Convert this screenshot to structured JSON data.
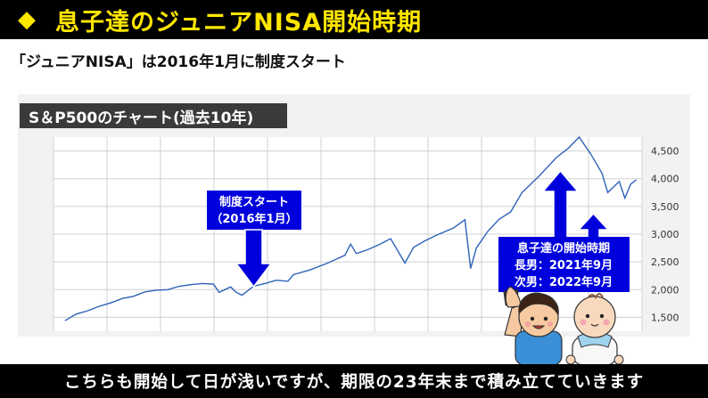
{
  "header": {
    "title": "息子達のジュニアNISA開始時期"
  },
  "subtitle": "「ジュニアNISA」は2016年1月に制度スタート",
  "chart_label": "S＆P500のチャート(過去10年)",
  "footer": "こちらも開始して日が浅いですが、期限の23年末まで積み立てていきます",
  "annotations": {
    "start_line1": "制度スタート",
    "start_line2": "（2016年1月）",
    "sons_line1": "息子達の開始時期",
    "sons_line2": "長男：2021年9月",
    "sons_line3": "次男：2022年9月"
  },
  "colors": {
    "line": "#2e62b8",
    "arrow": "#0000dd",
    "title": "#ffe600"
  },
  "chart_data": {
    "type": "line",
    "title": "S＆P500のチャート(過去10年)",
    "xlabel": "",
    "ylabel": "",
    "xlim": [
      2012.8,
      2023.1
    ],
    "ylim": [
      1250,
      4750
    ],
    "yticks": [
      1500,
      2000,
      2500,
      3000,
      3500,
      4000,
      4500
    ],
    "ytick_labels": [
      "1,500",
      "2,000",
      "2,500",
      "3,000",
      "3,500",
      "4,000",
      "4,500"
    ],
    "grid": true,
    "series": [
      {
        "x": [
          2013.0,
          2013.2,
          2013.4,
          2013.6,
          2013.8,
          2014.0,
          2014.2,
          2014.4,
          2014.6,
          2014.8,
          2015.0,
          2015.2,
          2015.4,
          2015.6,
          2015.7,
          2015.9,
          2016.0,
          2016.1,
          2016.3,
          2016.5,
          2016.7,
          2016.9,
          2017.0,
          2017.3,
          2017.6,
          2017.9,
          2018.0,
          2018.1,
          2018.3,
          2018.5,
          2018.7,
          2018.95,
          2019.1,
          2019.3,
          2019.5,
          2019.8,
          2020.0,
          2020.1,
          2020.2,
          2020.4,
          2020.6,
          2020.8,
          2021.0,
          2021.3,
          2021.6,
          2021.8,
          2022.0,
          2022.2,
          2022.4,
          2022.5,
          2022.7,
          2022.8,
          2022.9,
          2023.0
        ],
        "y": [
          1440,
          1560,
          1620,
          1700,
          1760,
          1840,
          1880,
          1960,
          1990,
          2000,
          2060,
          2090,
          2110,
          2100,
          1950,
          2050,
          1950,
          1900,
          2060,
          2110,
          2170,
          2150,
          2270,
          2360,
          2480,
          2620,
          2820,
          2650,
          2720,
          2810,
          2920,
          2480,
          2760,
          2880,
          2980,
          3110,
          3260,
          2380,
          2750,
          3050,
          3270,
          3400,
          3750,
          4050,
          4380,
          4540,
          4750,
          4450,
          4100,
          3750,
          3950,
          3650,
          3900,
          3980
        ]
      }
    ]
  }
}
